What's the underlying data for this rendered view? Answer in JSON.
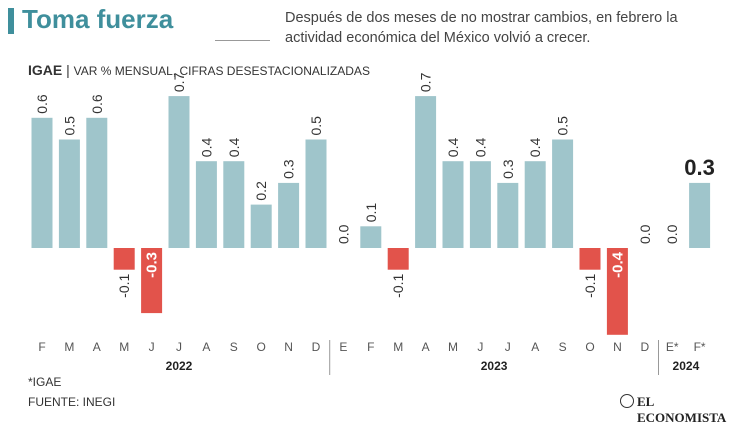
{
  "title": "Toma fuerza",
  "subtitle": "Después de dos meses de no mostrar cambios, en febrero la actividad económica del México volvió a crecer.",
  "chart_data": {
    "type": "bar",
    "label": "IGAE",
    "unit_label": "VAR % MENSUAL, CIFRAS DESESTACIONALIZADAS",
    "color_positive": "#9fc5cb",
    "color_negative": "#e2534b",
    "groups": [
      {
        "name": "2022",
        "categories": [
          "F",
          "M",
          "A",
          "M",
          "J",
          "J",
          "A",
          "S",
          "O",
          "N",
          "D"
        ],
        "values": [
          0.6,
          0.5,
          0.6,
          -0.1,
          -0.3,
          0.7,
          0.4,
          0.4,
          0.2,
          0.3,
          0.5
        ],
        "value_labels": [
          "0.6",
          "0.5",
          "0.6",
          "-0.1",
          "-0.3",
          "0.7",
          "0.4",
          "0.4",
          "0.2",
          "0.3",
          "0.5"
        ]
      },
      {
        "name": "2023",
        "categories": [
          "E",
          "F",
          "M",
          "A",
          "M",
          "J",
          "J",
          "A",
          "S",
          "O",
          "N",
          "D"
        ],
        "values": [
          0,
          0.1,
          -0.1,
          0.7,
          0.4,
          0.4,
          0.3,
          0.4,
          0.5,
          -0.1,
          -0.4,
          0
        ],
        "value_labels": [
          "0.0",
          "0.1",
          "-0.1",
          "0.7",
          "0.4",
          "0.4",
          "0.3",
          "0.4",
          "0.5",
          "-0.1",
          "-0.4",
          "0.0"
        ]
      },
      {
        "name": "2024",
        "categories": [
          "E*",
          "F*"
        ],
        "values": [
          0,
          0.3
        ],
        "value_labels": [
          "0.0",
          "0.3"
        ]
      }
    ]
  },
  "footnote": "*IGAE",
  "source": "FUENTE: INEGI",
  "logo": "EL ECONOMISTA"
}
